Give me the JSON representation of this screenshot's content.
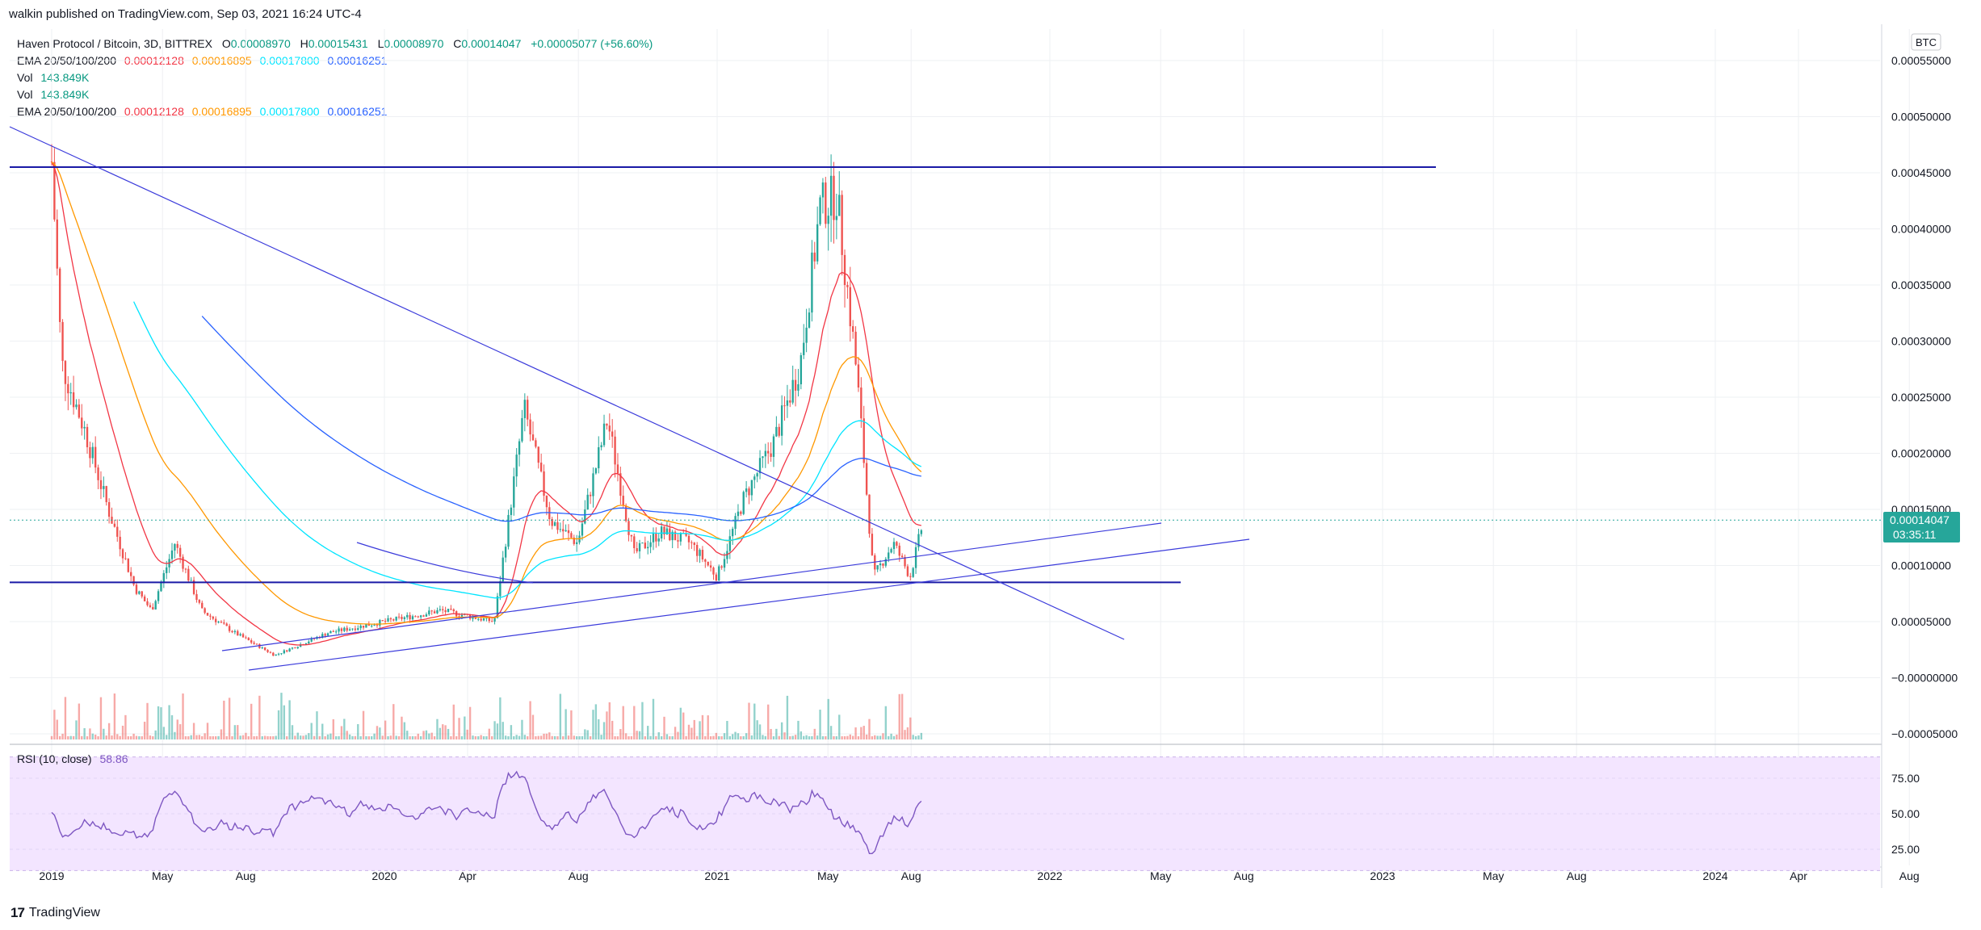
{
  "header": {
    "published": "walkin published on TradingView.com, Sep 03, 2021 16:24 UTC-4"
  },
  "legend": {
    "title": "Haven Protocol / Bitcoin, 3D, BITTREX",
    "ohlc": {
      "o_label": "O",
      "o": "0.00008970",
      "h_label": "H",
      "h": "0.00015431",
      "l_label": "L",
      "l": "0.00008970",
      "c_label": "C",
      "c": "0.00014047",
      "change": "+0.00005077 (+56.60%)"
    },
    "ema1": {
      "label": "EMA 20/50/100/200",
      "v20": "0.00012128",
      "v50": "0.00016895",
      "v100": "0.00017800",
      "v200": "0.00016251"
    },
    "vol1": {
      "label": "Vol",
      "value": "143.849K"
    },
    "vol2": {
      "label": "Vol",
      "value": "143.849K"
    },
    "ema2": {
      "label": "EMA 20/50/100/200",
      "v20": "0.00012128",
      "v50": "0.00016895",
      "v100": "0.00017800",
      "v200": "0.00016251"
    }
  },
  "rsi": {
    "label": "RSI (10, close)",
    "value": "58.86"
  },
  "price_axis": {
    "currency": "BTC",
    "ticks": [
      "0.00055000",
      "0.00050000",
      "0.00045000",
      "0.00040000",
      "0.00035000",
      "0.00030000",
      "0.00025000",
      "0.00020000",
      "0.00015000",
      "0.00010000",
      "0.00005000",
      "−0.00000000",
      "−0.00005000"
    ],
    "current_price": "0.00014047",
    "countdown": "03:35:11"
  },
  "rsi_axis": {
    "ticks": [
      "75.00",
      "50.00",
      "25.00"
    ]
  },
  "time_axis": {
    "labels": [
      {
        "t": 0.0,
        "label": "2019"
      },
      {
        "t": 0.333,
        "label": "May"
      },
      {
        "t": 0.583,
        "label": "Aug"
      },
      {
        "t": 1.0,
        "label": "2020"
      },
      {
        "t": 1.25,
        "label": "Apr"
      },
      {
        "t": 1.583,
        "label": "Aug"
      },
      {
        "t": 2.0,
        "label": "2021"
      },
      {
        "t": 2.333,
        "label": "May"
      },
      {
        "t": 2.583,
        "label": "Aug"
      },
      {
        "t": 3.0,
        "label": "2022"
      },
      {
        "t": 3.333,
        "label": "May"
      },
      {
        "t": 3.583,
        "label": "Aug"
      },
      {
        "t": 4.0,
        "label": "2023"
      },
      {
        "t": 4.333,
        "label": "May"
      },
      {
        "t": 4.583,
        "label": "Aug"
      },
      {
        "t": 5.0,
        "label": "2024"
      },
      {
        "t": 5.25,
        "label": "Apr"
      },
      {
        "t": 5.583,
        "label": "Aug"
      }
    ]
  },
  "colors": {
    "up": "#26a69a",
    "down": "#ef5350",
    "ema20": "#f23645",
    "ema50": "#ff9800",
    "ema100": "#00e5ff",
    "ema200": "#2962ff",
    "drawing": "#3b3bdb",
    "hline": "#1a1aa6",
    "rsi": "#7e57c2",
    "rsi_band": "#f3e5ff"
  },
  "footer": {
    "brand": "TradingView",
    "logo": "17"
  },
  "chart_data": {
    "type": "candlestick",
    "symbol": "Haven Protocol / Bitcoin",
    "timeframe": "3D",
    "y_range": [
      -5e-05,
      0.00055
    ],
    "close_approx": [
      {
        "t": 0.0,
        "close": 0.00046
      },
      {
        "t": 0.03,
        "close": 0.00028
      },
      {
        "t": 0.1,
        "close": 0.00022
      },
      {
        "t": 0.17,
        "close": 0.00015
      },
      {
        "t": 0.25,
        "close": 8e-05
      },
      {
        "t": 0.3,
        "close": 6e-05
      },
      {
        "t": 0.37,
        "close": 0.00012
      },
      {
        "t": 0.45,
        "close": 6e-05
      },
      {
        "t": 0.55,
        "close": 4e-05
      },
      {
        "t": 0.67,
        "close": 2e-05
      },
      {
        "t": 0.83,
        "close": 4e-05
      },
      {
        "t": 1.0,
        "close": 5e-05
      },
      {
        "t": 1.17,
        "close": 6e-05
      },
      {
        "t": 1.33,
        "close": 5e-05
      },
      {
        "t": 1.42,
        "close": 0.00024
      },
      {
        "t": 1.5,
        "close": 0.00014
      },
      {
        "t": 1.58,
        "close": 0.00012
      },
      {
        "t": 1.67,
        "close": 0.00023
      },
      {
        "t": 1.75,
        "close": 0.00011
      },
      {
        "t": 1.83,
        "close": 0.00013
      },
      {
        "t": 1.92,
        "close": 0.00012
      },
      {
        "t": 2.0,
        "close": 9e-05
      },
      {
        "t": 2.08,
        "close": 0.00016
      },
      {
        "t": 2.17,
        "close": 0.00021
      },
      {
        "t": 2.25,
        "close": 0.00028
      },
      {
        "t": 2.31,
        "close": 0.00042
      },
      {
        "t": 2.36,
        "close": 0.00043
      },
      {
        "t": 2.42,
        "close": 0.00027
      },
      {
        "t": 2.47,
        "close": 9e-05
      },
      {
        "t": 2.53,
        "close": 0.00012
      },
      {
        "t": 2.58,
        "close": 9e-05
      },
      {
        "t": 2.62,
        "close": 0.00014047
      }
    ],
    "levels": {
      "resistance": 0.000455,
      "support": 8.5e-05
    }
  }
}
